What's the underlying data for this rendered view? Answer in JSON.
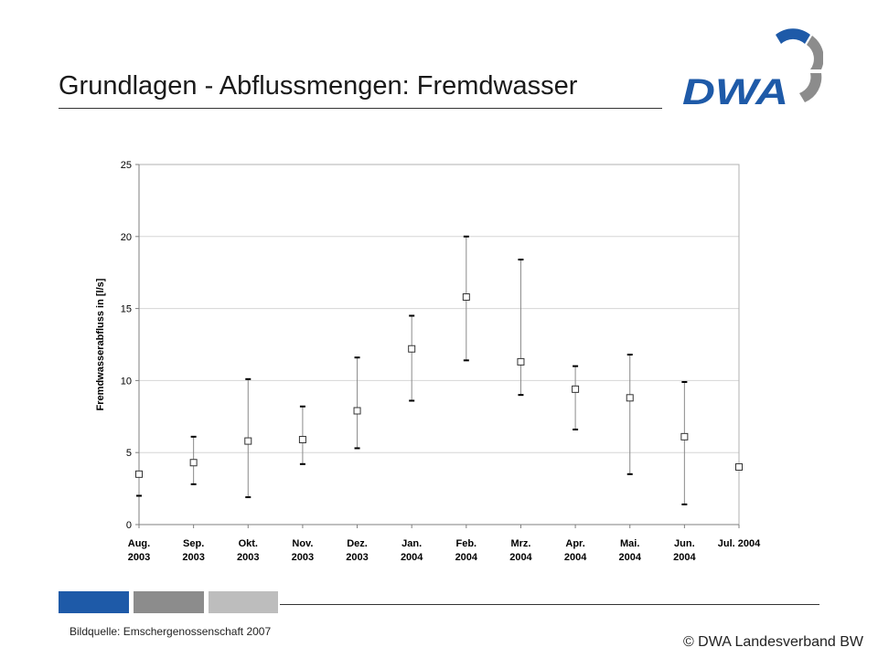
{
  "slide": {
    "title": "Grundlagen - Abflussmengen: Fremdwasser",
    "source": "Bildquelle: Emschergenossenschaft 2007",
    "copyright": "© DWA Landesverband BW",
    "logo_text": "DWA"
  },
  "colors": {
    "brand_blue": "#1e5aa8",
    "brand_gray": "#8c8c8c",
    "light_gray": "#bdbdbd"
  },
  "chart_data": {
    "type": "scatter",
    "title": "",
    "xlabel": "",
    "ylabel": "Fremdwasserabfluss in [l/s]",
    "ylim": [
      0,
      25
    ],
    "yticks": [
      0,
      5,
      10,
      15,
      20,
      25
    ],
    "grid": true,
    "categories": [
      [
        "Aug.",
        "2003"
      ],
      [
        "Sep.",
        "2003"
      ],
      [
        "Okt.",
        "2003"
      ],
      [
        "Nov.",
        "2003"
      ],
      [
        "Dez.",
        "2003"
      ],
      [
        "Jan.",
        "2004"
      ],
      [
        "Feb.",
        "2004"
      ],
      [
        "Mrz.",
        "2004"
      ],
      [
        "Apr.",
        "2004"
      ],
      [
        "Mai.",
        "2004"
      ],
      [
        "Jun.",
        "2004"
      ],
      [
        "Jul. 2004"
      ]
    ],
    "series": [
      {
        "values": [
          3.5,
          4.3,
          5.8,
          5.9,
          7.9,
          12.2,
          15.8,
          11.3,
          9.4,
          8.8,
          6.1,
          4.0
        ],
        "min": [
          2.0,
          2.8,
          1.9,
          4.2,
          5.3,
          8.6,
          11.4,
          9.0,
          6.6,
          3.5,
          1.4,
          3.9
        ],
        "max": [
          3.6,
          6.1,
          10.1,
          8.2,
          11.6,
          14.5,
          20.0,
          18.4,
          11.0,
          11.8,
          9.9,
          4.1
        ]
      }
    ]
  }
}
